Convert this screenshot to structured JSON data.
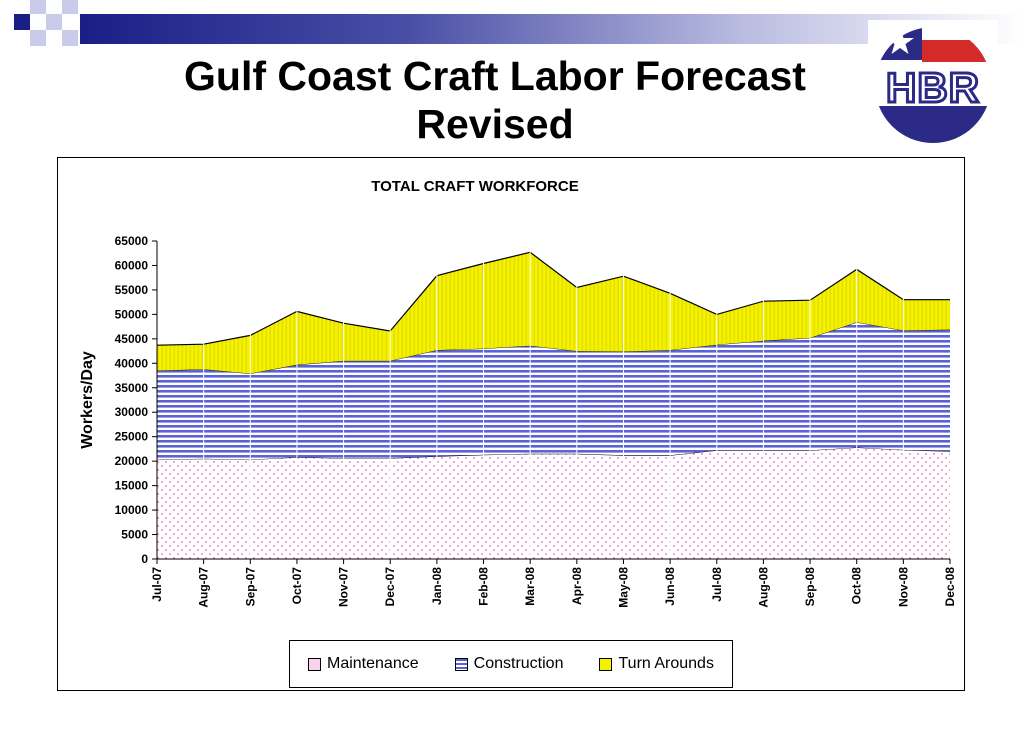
{
  "slide": {
    "title_line1": "Gulf Coast Craft Labor Forecast",
    "title_line2": "Revised",
    "logo_text": "HBR"
  },
  "colors": {
    "maintenance": "#e95fc7",
    "construction": "#5a62d6",
    "turnarounds": "#f5f200",
    "logo_blue": "#2b2a87",
    "logo_red": "#d42a2a"
  },
  "chart_data": {
    "type": "area",
    "stacked": true,
    "title": "TOTAL CRAFT WORKFORCE",
    "xlabel": "",
    "ylabel": "Workers/Day",
    "ylim": [
      0,
      65000
    ],
    "yticks": [
      0,
      5000,
      10000,
      15000,
      20000,
      25000,
      30000,
      35000,
      40000,
      45000,
      50000,
      55000,
      60000,
      65000
    ],
    "grid": "vertical",
    "legend_position": "bottom",
    "categories": [
      "Jul-07",
      "Aug-07",
      "Sep-07",
      "Oct-07",
      "Nov-07",
      "Dec-07",
      "Jan-08",
      "Feb-08",
      "Mar-08",
      "Apr-08",
      "May-08",
      "Jun-08",
      "Jul-08",
      "Aug-08",
      "Sep-08",
      "Oct-08",
      "Nov-08",
      "Dec-08"
    ],
    "series": [
      {
        "name": "Maintenance",
        "values": [
          20300,
          20500,
          20300,
          20800,
          20600,
          20600,
          21000,
          21300,
          21500,
          21500,
          21200,
          21200,
          22200,
          22200,
          22200,
          22800,
          22300,
          22000
        ]
      },
      {
        "name": "Construction",
        "values": [
          18200,
          18300,
          17600,
          18900,
          19900,
          19900,
          21700,
          21700,
          22100,
          21000,
          21200,
          21500,
          21600,
          22400,
          23000,
          25600,
          24400,
          24900
        ]
      },
      {
        "name": "Turn Arounds",
        "values": [
          5200,
          5100,
          7800,
          10900,
          7700,
          6100,
          15200,
          17400,
          19100,
          13000,
          15400,
          11600,
          6200,
          8100,
          7700,
          10800,
          6300,
          6100
        ]
      }
    ]
  }
}
